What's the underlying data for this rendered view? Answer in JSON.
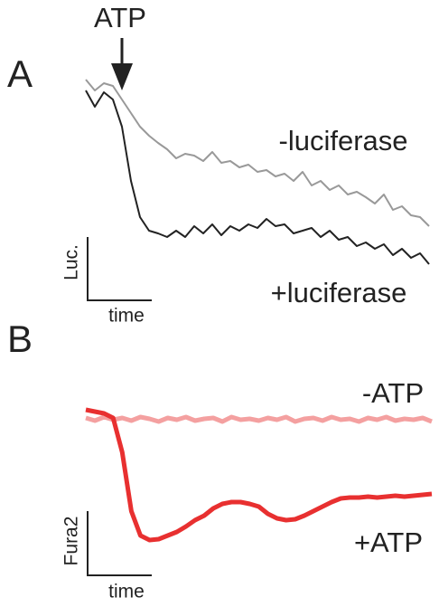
{
  "chart_data": [
    {
      "type": "line",
      "panel_label": "A",
      "annotation": "ATP",
      "y_label": "Luc.",
      "x_label": "time",
      "x": [
        0,
        1,
        2,
        3,
        4,
        5,
        6,
        7,
        8,
        9,
        10,
        11,
        12,
        13,
        14,
        15,
        16,
        17,
        18,
        19,
        20,
        21,
        22,
        23,
        24,
        25,
        26,
        27,
        28,
        29,
        30,
        31,
        32,
        33,
        34,
        35,
        36,
        37,
        38
      ],
      "xlim": [
        0,
        38
      ],
      "ylim": [
        0,
        220
      ],
      "series": [
        {
          "name": "-luciferase",
          "color": "#999999",
          "values": [
            212,
            200,
            208,
            205,
            190,
            175,
            160,
            150,
            142,
            135,
            125,
            130,
            128,
            122,
            132,
            120,
            122,
            115,
            118,
            110,
            112,
            105,
            108,
            100,
            110,
            95,
            100,
            90,
            95,
            85,
            88,
            82,
            75,
            85,
            68,
            72,
            62,
            60,
            50
          ]
        },
        {
          "name": "+luciferase",
          "color": "#222222",
          "values": [
            200,
            182,
            198,
            190,
            160,
            100,
            60,
            45,
            42,
            38,
            45,
            38,
            50,
            42,
            52,
            40,
            50,
            45,
            52,
            48,
            58,
            50,
            52,
            42,
            45,
            48,
            38,
            45,
            35,
            38,
            28,
            32,
            25,
            30,
            18,
            25,
            15,
            20,
            8
          ]
        }
      ]
    },
    {
      "type": "line",
      "panel_label": "B",
      "y_label": "Fura2",
      "x_label": "time",
      "x": [
        0,
        1,
        2,
        3,
        4,
        5,
        6,
        7,
        8,
        9,
        10,
        11,
        12,
        13,
        14,
        15,
        16,
        17,
        18,
        19,
        20,
        21,
        22,
        23,
        24,
        25,
        26,
        27,
        28,
        29,
        30,
        31,
        32,
        33,
        34,
        35,
        36,
        37,
        38
      ],
      "xlim": [
        0,
        38
      ],
      "ylim": [
        0,
        160
      ],
      "series": [
        {
          "name": "-ATP",
          "color": "#f4a0a0",
          "values": [
            138,
            135,
            139,
            136,
            138,
            135,
            139,
            137,
            134,
            138,
            136,
            139,
            135,
            137,
            138,
            134,
            139,
            136,
            137,
            135,
            138,
            136,
            139,
            134,
            137,
            138,
            135,
            139,
            136,
            137,
            134,
            138,
            136,
            139,
            135,
            137,
            136,
            138,
            134
          ]
        },
        {
          "name": "+ATP",
          "color": "#e83030",
          "values": [
            147,
            145,
            143,
            138,
            100,
            35,
            8,
            3,
            4,
            8,
            12,
            18,
            25,
            30,
            38,
            43,
            45,
            45,
            43,
            40,
            32,
            27,
            25,
            26,
            30,
            35,
            40,
            45,
            49,
            50,
            50,
            51,
            50,
            51,
            52,
            51,
            52,
            53,
            54
          ]
        }
      ]
    }
  ]
}
